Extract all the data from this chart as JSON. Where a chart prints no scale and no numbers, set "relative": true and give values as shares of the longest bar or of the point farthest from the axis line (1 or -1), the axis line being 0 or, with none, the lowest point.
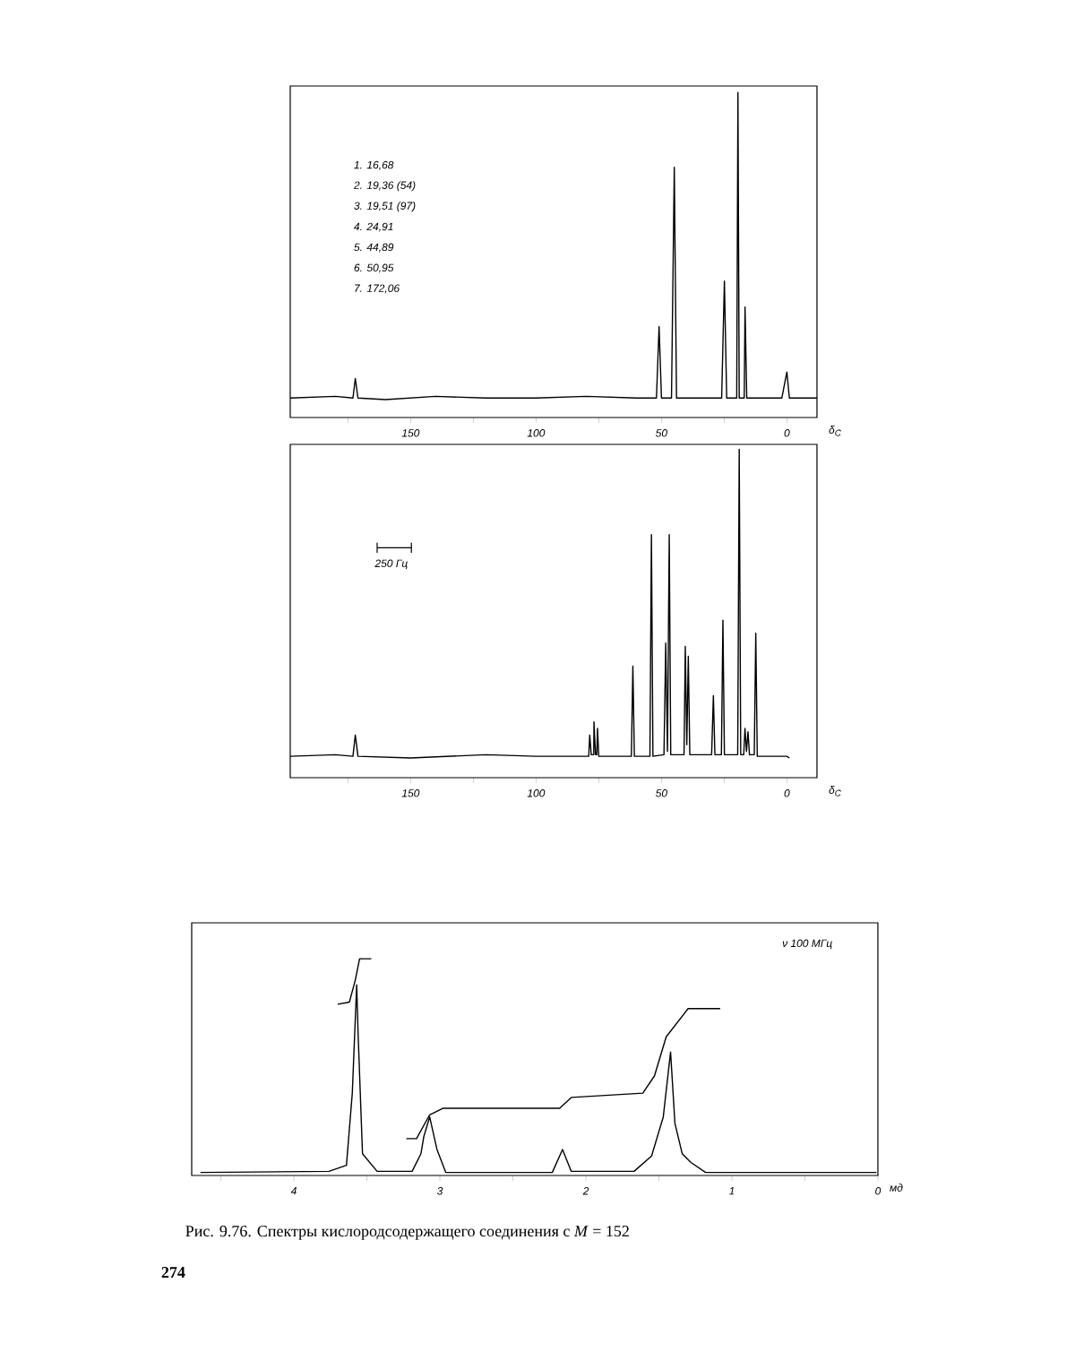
{
  "chart_data": [
    {
      "type": "line",
      "relative": true,
      "xlim": [
        198,
        -12
      ],
      "xlabel": "δ$_{C}$",
      "xticks": [
        {
          "value": 175,
          "label": null
        },
        150,
        {
          "value": 125,
          "label": null
        },
        100,
        {
          "value": 75,
          "label": null
        },
        50,
        {
          "value": 25,
          "label": null
        },
        0
      ],
      "annotations": [
        "1. 16,68",
        "2. 19,36 (54)",
        "3. 19,51 (97)",
        "4. 24,91",
        "5. 44,89",
        "6. 50,95",
        "7. 172,06"
      ],
      "series": [
        {
          "color": "#000000",
          "x": [
            198,
            180,
            173,
            172.06,
            171,
            160,
            140,
            120,
            100,
            80,
            60,
            52,
            50.95,
            50,
            46,
            44.89,
            44,
            26,
            24.91,
            24,
            20,
            19.51,
            19,
            17,
            16.68,
            16,
            2,
            0,
            -1,
            -12
          ],
          "values": [
            0.06,
            0.065,
            0.06,
            0.12,
            0.06,
            0.055,
            0.065,
            0.06,
            0.06,
            0.065,
            0.06,
            0.06,
            0.28,
            0.06,
            0.06,
            0.77,
            0.06,
            0.06,
            0.42,
            0.06,
            0.06,
            1.0,
            0.06,
            0.06,
            0.34,
            0.06,
            0.06,
            0.14,
            0.06,
            0.06
          ]
        }
      ]
    },
    {
      "type": "line",
      "relative": true,
      "xlim": [
        198,
        -12
      ],
      "xlabel": "δ$_{C}$",
      "xticks": [
        {
          "value": 175,
          "label": null
        },
        150,
        {
          "value": 125,
          "label": null
        },
        100,
        {
          "value": 75,
          "label": null
        },
        50,
        {
          "value": 25,
          "label": null
        },
        0
      ],
      "annotations": [
        "250 Гц"
      ],
      "series": [
        {
          "color": "#000000",
          "x": [
            198,
            180,
            173,
            172.06,
            171,
            150,
            120,
            100,
            82,
            79,
            78.6,
            78,
            77,
            76.9,
            76.3,
            75.8,
            75.5,
            75,
            62,
            61.4,
            60.8,
            54.6,
            54,
            53.4,
            49,
            48.3,
            47.6,
            46.9,
            46.3,
            41,
            40.5,
            39.9,
            39.3,
            38.7,
            30,
            29.3,
            28.7,
            26.1,
            25.5,
            24.9,
            19.6,
            19,
            18.4,
            17.2,
            16.7,
            16.1,
            15.5,
            14.9,
            13,
            12.4,
            11.8,
            0,
            -1
          ],
          "values": [
            0.065,
            0.07,
            0.065,
            0.13,
            0.065,
            0.06,
            0.07,
            0.065,
            0.065,
            0.065,
            0.13,
            0.07,
            0.07,
            0.17,
            0.07,
            0.07,
            0.15,
            0.065,
            0.065,
            0.34,
            0.065,
            0.065,
            0.74,
            0.065,
            0.07,
            0.41,
            0.08,
            0.74,
            0.07,
            0.07,
            0.4,
            0.1,
            0.37,
            0.07,
            0.07,
            0.25,
            0.07,
            0.07,
            0.48,
            0.07,
            0.07,
            1.0,
            0.07,
            0.07,
            0.15,
            0.08,
            0.14,
            0.07,
            0.07,
            0.44,
            0.065,
            0.065,
            0.06
          ]
        }
      ]
    },
    {
      "type": "line",
      "relative": true,
      "xlim": [
        4.7,
        0
      ],
      "xlabel": "мд",
      "xticks": [
        {
          "value": 4.5,
          "label": null
        },
        4,
        {
          "value": 3.5,
          "label": null
        },
        3,
        {
          "value": 2.5,
          "label": null
        },
        2,
        {
          "value": 1.5,
          "label": null
        },
        1,
        {
          "value": 0.5,
          "label": null
        },
        0
      ],
      "annotations": [
        "ν 100 МГц",
        "Рис. 9.76. Спектры кислородсодержащего соединения с *M* = 152",
        "274"
      ],
      "series": [
        {
          "color": "#000000",
          "x": [
            4.64,
            3.76,
            3.64,
            3.6,
            3.57,
            3.56,
            3.53,
            3.43,
            3.19,
            3.13,
            3.11,
            3.07,
            3.02,
            2.96,
            2.23,
            2.16,
            2.1,
            1.67,
            1.55,
            1.47,
            1.42,
            1.39,
            1.34,
            1.28,
            1.18,
            0.01
          ],
          "values": [
            0.014,
            0.019,
            0.047,
            0.38,
            0.88,
            0.65,
            0.1,
            0.019,
            0.019,
            0.1,
            0.18,
            0.27,
            0.12,
            0.014,
            0.014,
            0.12,
            0.019,
            0.019,
            0.09,
            0.27,
            0.57,
            0.24,
            0.1,
            0.06,
            0.014,
            0.014
          ]
        },
        {
          "color": "#000000",
          "x": [
            3.7,
            3.62,
            3.58,
            3.55,
            3.47
          ],
          "values": [
            0.79,
            0.8,
            0.9,
            1.0,
            1.0
          ]
        },
        {
          "color": "#000000",
          "x": [
            3.23,
            3.16,
            3.07,
            2.98,
            2.18,
            2.1,
            1.61,
            1.53,
            1.45,
            1.3,
            1.08
          ],
          "values": [
            0.17,
            0.17,
            0.28,
            0.31,
            0.31,
            0.36,
            0.38,
            0.46,
            0.64,
            0.77,
            0.77
          ]
        }
      ]
    }
  ]
}
